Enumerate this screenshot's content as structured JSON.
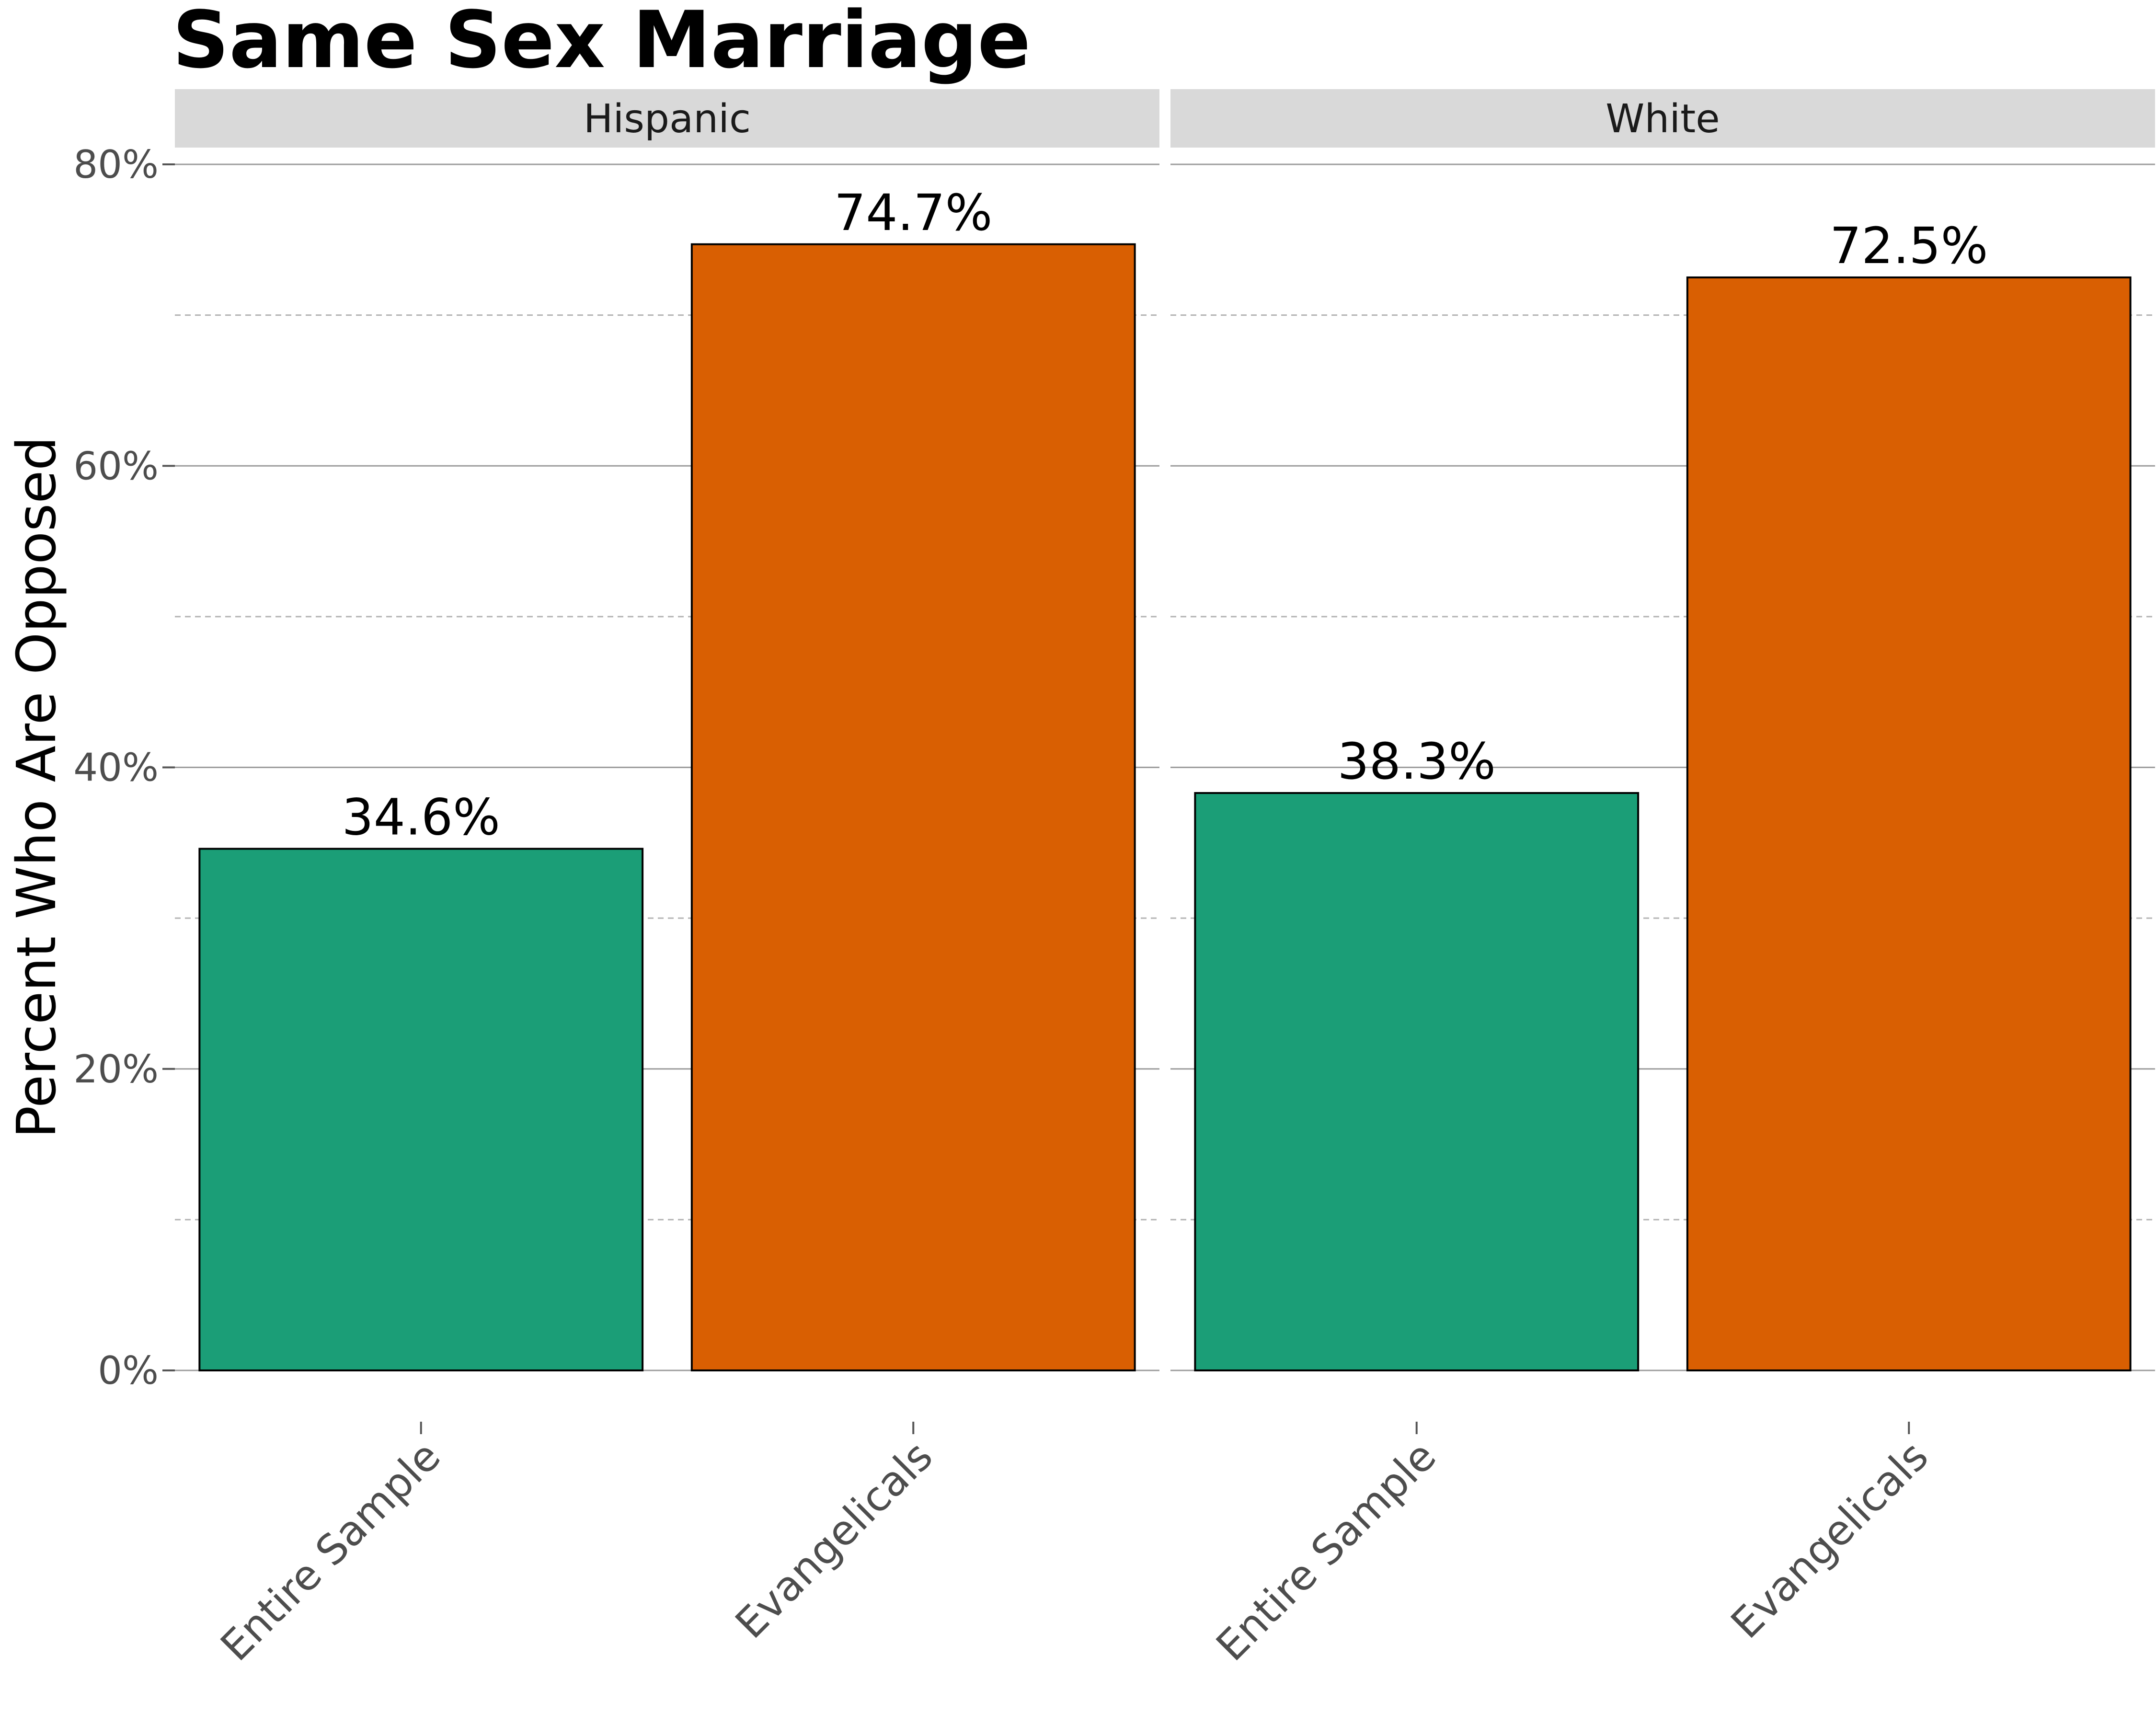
{
  "chart_data": {
    "type": "bar",
    "title": "Same Sex Marriage",
    "ylabel": "Percent Who Are Opposed",
    "ylim": [
      0,
      80
    ],
    "y_ticks": [
      0,
      20,
      40,
      60,
      80
    ],
    "y_tick_labels": [
      "0%",
      "20%",
      "40%",
      "60%",
      "80%"
    ],
    "grid": true,
    "categories": [
      "Entire Sample",
      "Evangelicals"
    ],
    "colors": {
      "Entire Sample": "#1b9e77",
      "Evangelicals": "#d95f02"
    },
    "facets": [
      {
        "label": "Hispanic",
        "values": [
          34.6,
          74.7
        ],
        "value_labels": [
          "34.6%",
          "74.7%"
        ]
      },
      {
        "label": "White",
        "values": [
          38.3,
          72.5
        ],
        "value_labels": [
          "38.3%",
          "72.5%"
        ]
      }
    ]
  }
}
